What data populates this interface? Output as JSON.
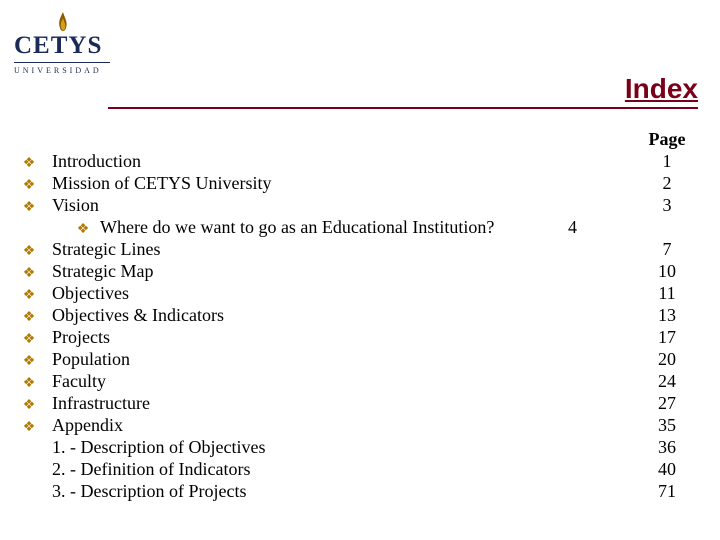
{
  "logo": {
    "word": "CETYS",
    "sub": "UNIVERSIDAD",
    "text_color": "#1b2a57",
    "flame_color_dark": "#8a5a00",
    "flame_color_light": "#d4a017"
  },
  "title": "Index",
  "title_color": "#7a0019",
  "page_header": "Page",
  "bullet_glyph": "❖",
  "bullet_color": "#b07a00",
  "rows": [
    {
      "type": "item",
      "label": "Introduction",
      "page": "1"
    },
    {
      "type": "item",
      "label": "Mission of CETYS University",
      "page": "2"
    },
    {
      "type": "item",
      "label": "Vision",
      "page": "3"
    },
    {
      "type": "sub",
      "label": "Where do we want to go as an Educational Institution?",
      "page": "4"
    },
    {
      "type": "item",
      "label": "Strategic Lines",
      "page": "7"
    },
    {
      "type": "item",
      "label": "Strategic Map",
      "page": "10"
    },
    {
      "type": "item",
      "label": "Objectives",
      "page": "11"
    },
    {
      "type": "item",
      "label": "Objectives & Indicators",
      "page": "13"
    },
    {
      "type": "item",
      "label": "Projects",
      "page": "17"
    },
    {
      "type": "item",
      "label": "Population",
      "page": "20"
    },
    {
      "type": "item",
      "label": "Faculty",
      "page": "24"
    },
    {
      "type": "item",
      "label": "Infrastructure",
      "page": "27"
    },
    {
      "type": "item",
      "label": "Appendix",
      "page": "35"
    },
    {
      "type": "plain",
      "label": "1. - Description of Objectives",
      "page": "36"
    },
    {
      "type": "plain",
      "label": "2. - Definition of Indicators",
      "page": "40"
    },
    {
      "type": "plain",
      "label": "3. - Description of Projects",
      "page": "71"
    }
  ]
}
